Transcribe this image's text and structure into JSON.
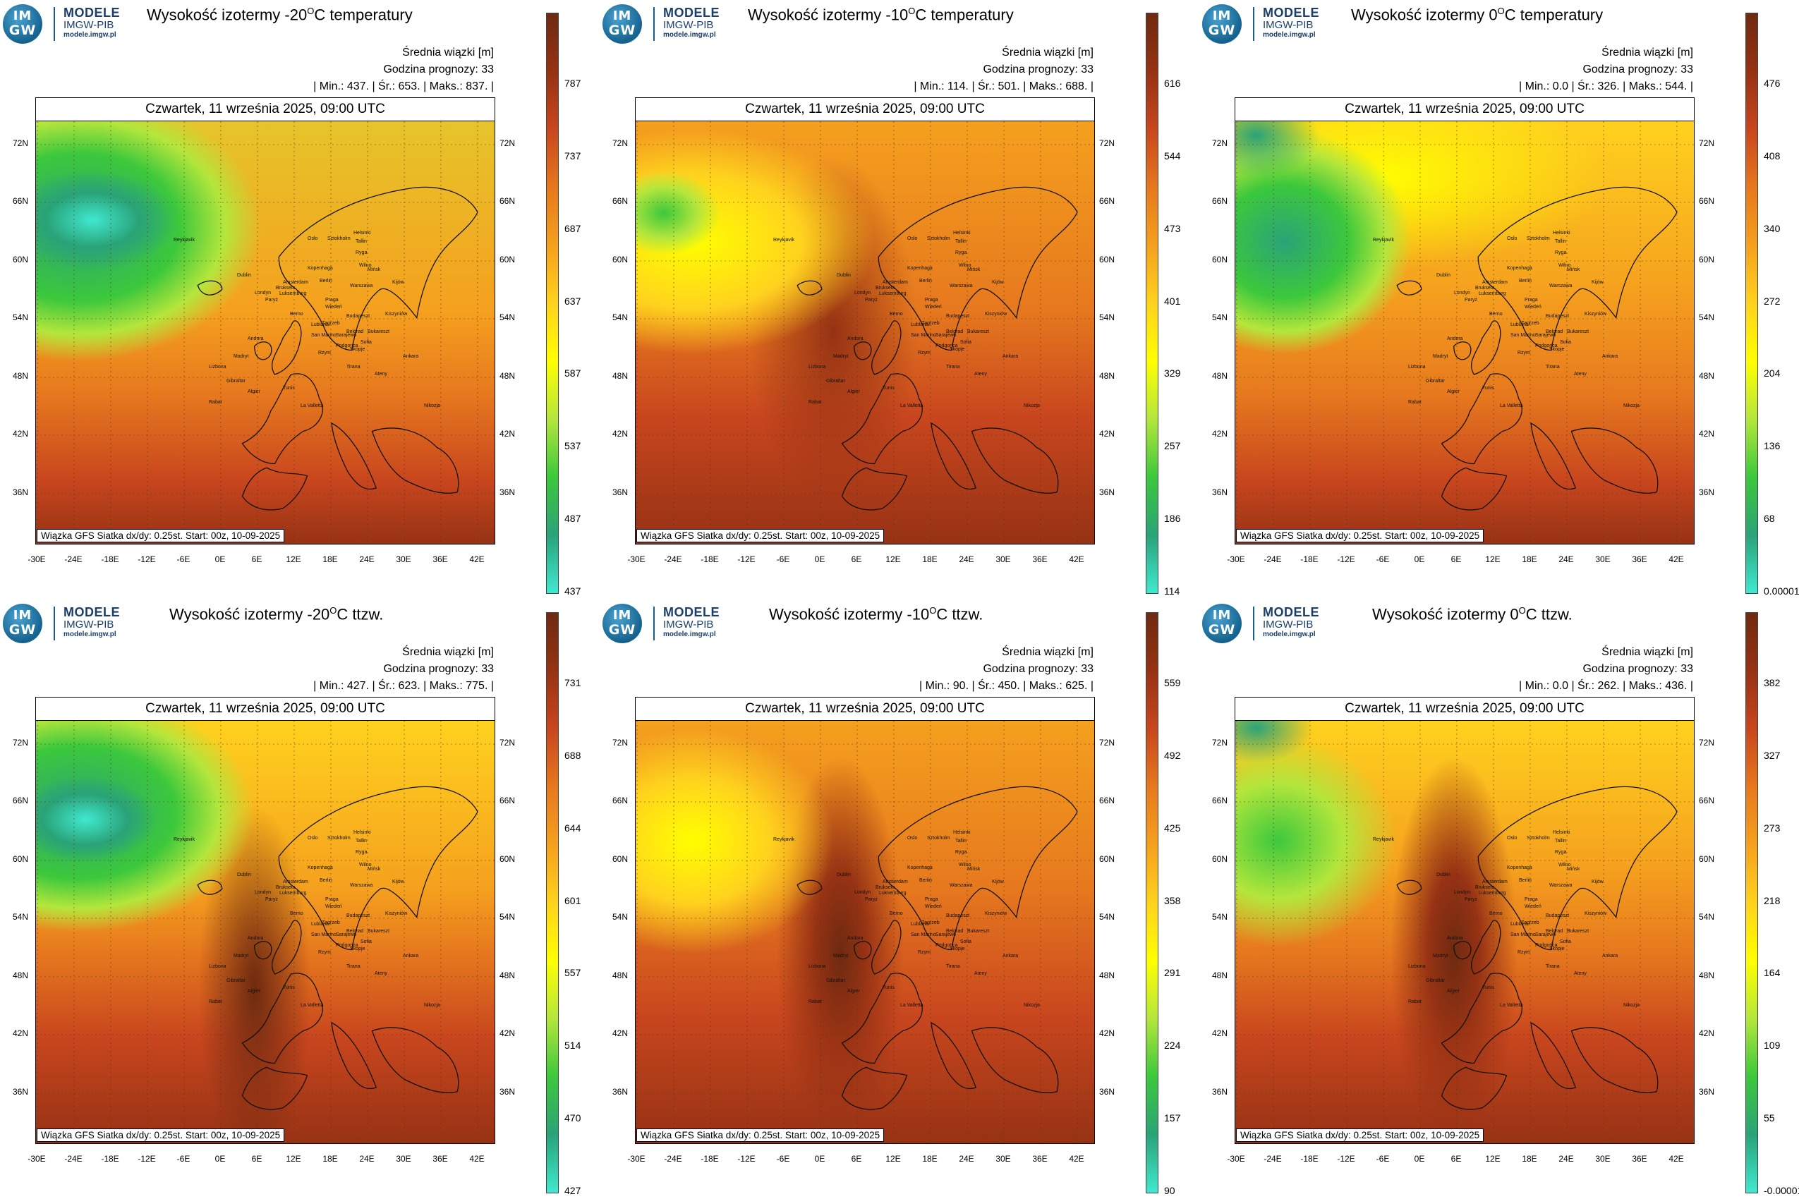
{
  "logo": {
    "badge_top": "IM",
    "badge_bottom": "GW",
    "title": "MODELE",
    "org": "IMGW-PIB",
    "url": "modele.imgw.pl"
  },
  "info": {
    "mean_label": "Średnia wiązki [m]",
    "forecast_label": "Godzina prognozy: 33",
    "min_label": "Min.:",
    "avg_label": "Śr.:",
    "max_label": "Maks.:"
  },
  "date_line": "Czwartek, 11 września 2025, 09:00 UTC",
  "footer": "Wiązka GFS Siatka dx/dy: 0.25st. Start: 00z, 10-09-2025",
  "lat_labels": [
    "72N",
    "66N",
    "60N",
    "54N",
    "48N",
    "42N",
    "36N"
  ],
  "lon_labels": [
    "-30E",
    "-24E",
    "-18E",
    "-12E",
    "-6E",
    "0E",
    "6E",
    "12E",
    "18E",
    "24E",
    "30E",
    "36E",
    "42E"
  ],
  "cities": [
    "Oslo",
    "Sztokholm",
    "Helsinki",
    "Tallin",
    "Ryga",
    "Wilno",
    "Mińsk",
    "Kopenhaga",
    "Berlin",
    "Warszawa",
    "Praga",
    "Amsterdam",
    "Bruksela",
    "Luksemburg",
    "Paryż",
    "Berno",
    "Wiedeń",
    "Budapeszt",
    "Zagrzeb",
    "Belgrad",
    "Bukareszt",
    "Sofia",
    "Skopje",
    "Tirana",
    "Ateny",
    "Rzym",
    "San Marino",
    "Andora",
    "Madryt",
    "Lizbona",
    "Gibraltar",
    "Rabat",
    "Algier",
    "Tunis",
    "La Valletta",
    "Ankara",
    "Nikozja",
    "Londyn",
    "Dublin",
    "Reykjavik",
    "Kiszyniów",
    "Kijów",
    "Podgorica",
    "Sarajewo",
    "Lublana"
  ],
  "colors": {
    "scale": [
      "#40e8d0",
      "#2aa378",
      "#3cc83c",
      "#b4e63c",
      "#ffff00",
      "#ffd21e",
      "#f5a01e",
      "#e6781e",
      "#c8461e",
      "#963214",
      "#6e2a10"
    ]
  },
  "panels": [
    {
      "title_pre": "Wysokość izotermy -20",
      "title_sup": "O",
      "title_post": "C temperatury",
      "min": "437.",
      "avg": "653.",
      "max": "837.",
      "colorbar": [
        "787",
        "737",
        "687",
        "637",
        "587",
        "537",
        "487",
        "437"
      ]
    },
    {
      "title_pre": "Wysokość izotermy -10",
      "title_sup": "O",
      "title_post": "C temperatury",
      "min": "114.",
      "avg": "501.",
      "max": "688.",
      "colorbar": [
        "616",
        "544",
        "473",
        "401",
        "329",
        "257",
        "186",
        "114"
      ]
    },
    {
      "title_pre": "Wysokość izotermy 0",
      "title_sup": "O",
      "title_post": "C temperatury",
      "min": "0.0",
      "avg": "326.",
      "max": "544.",
      "colorbar": [
        "476",
        "408",
        "340",
        "272",
        "204",
        "136",
        "68",
        "0.00001"
      ]
    },
    {
      "title_pre": "Wysokość izotermy -20",
      "title_sup": "O",
      "title_post": "C ttzw.",
      "min": "427.",
      "avg": "623.",
      "max": "775.",
      "colorbar": [
        "731",
        "688",
        "644",
        "601",
        "557",
        "514",
        "470",
        "427"
      ]
    },
    {
      "title_pre": "Wysokość izotermy -10",
      "title_sup": "O",
      "title_post": "C ttzw.",
      "min": "90.",
      "avg": "450.",
      "max": "625.",
      "colorbar": [
        "559",
        "492",
        "425",
        "358",
        "291",
        "224",
        "157",
        "90"
      ]
    },
    {
      "title_pre": "Wysokość izotermy 0",
      "title_sup": "O",
      "title_post": "C ttzw.",
      "min": "0.0",
      "avg": "262.",
      "max": "436.",
      "colorbar": [
        "382",
        "327",
        "273",
        "218",
        "164",
        "109",
        "55",
        "-0.00001"
      ]
    }
  ]
}
